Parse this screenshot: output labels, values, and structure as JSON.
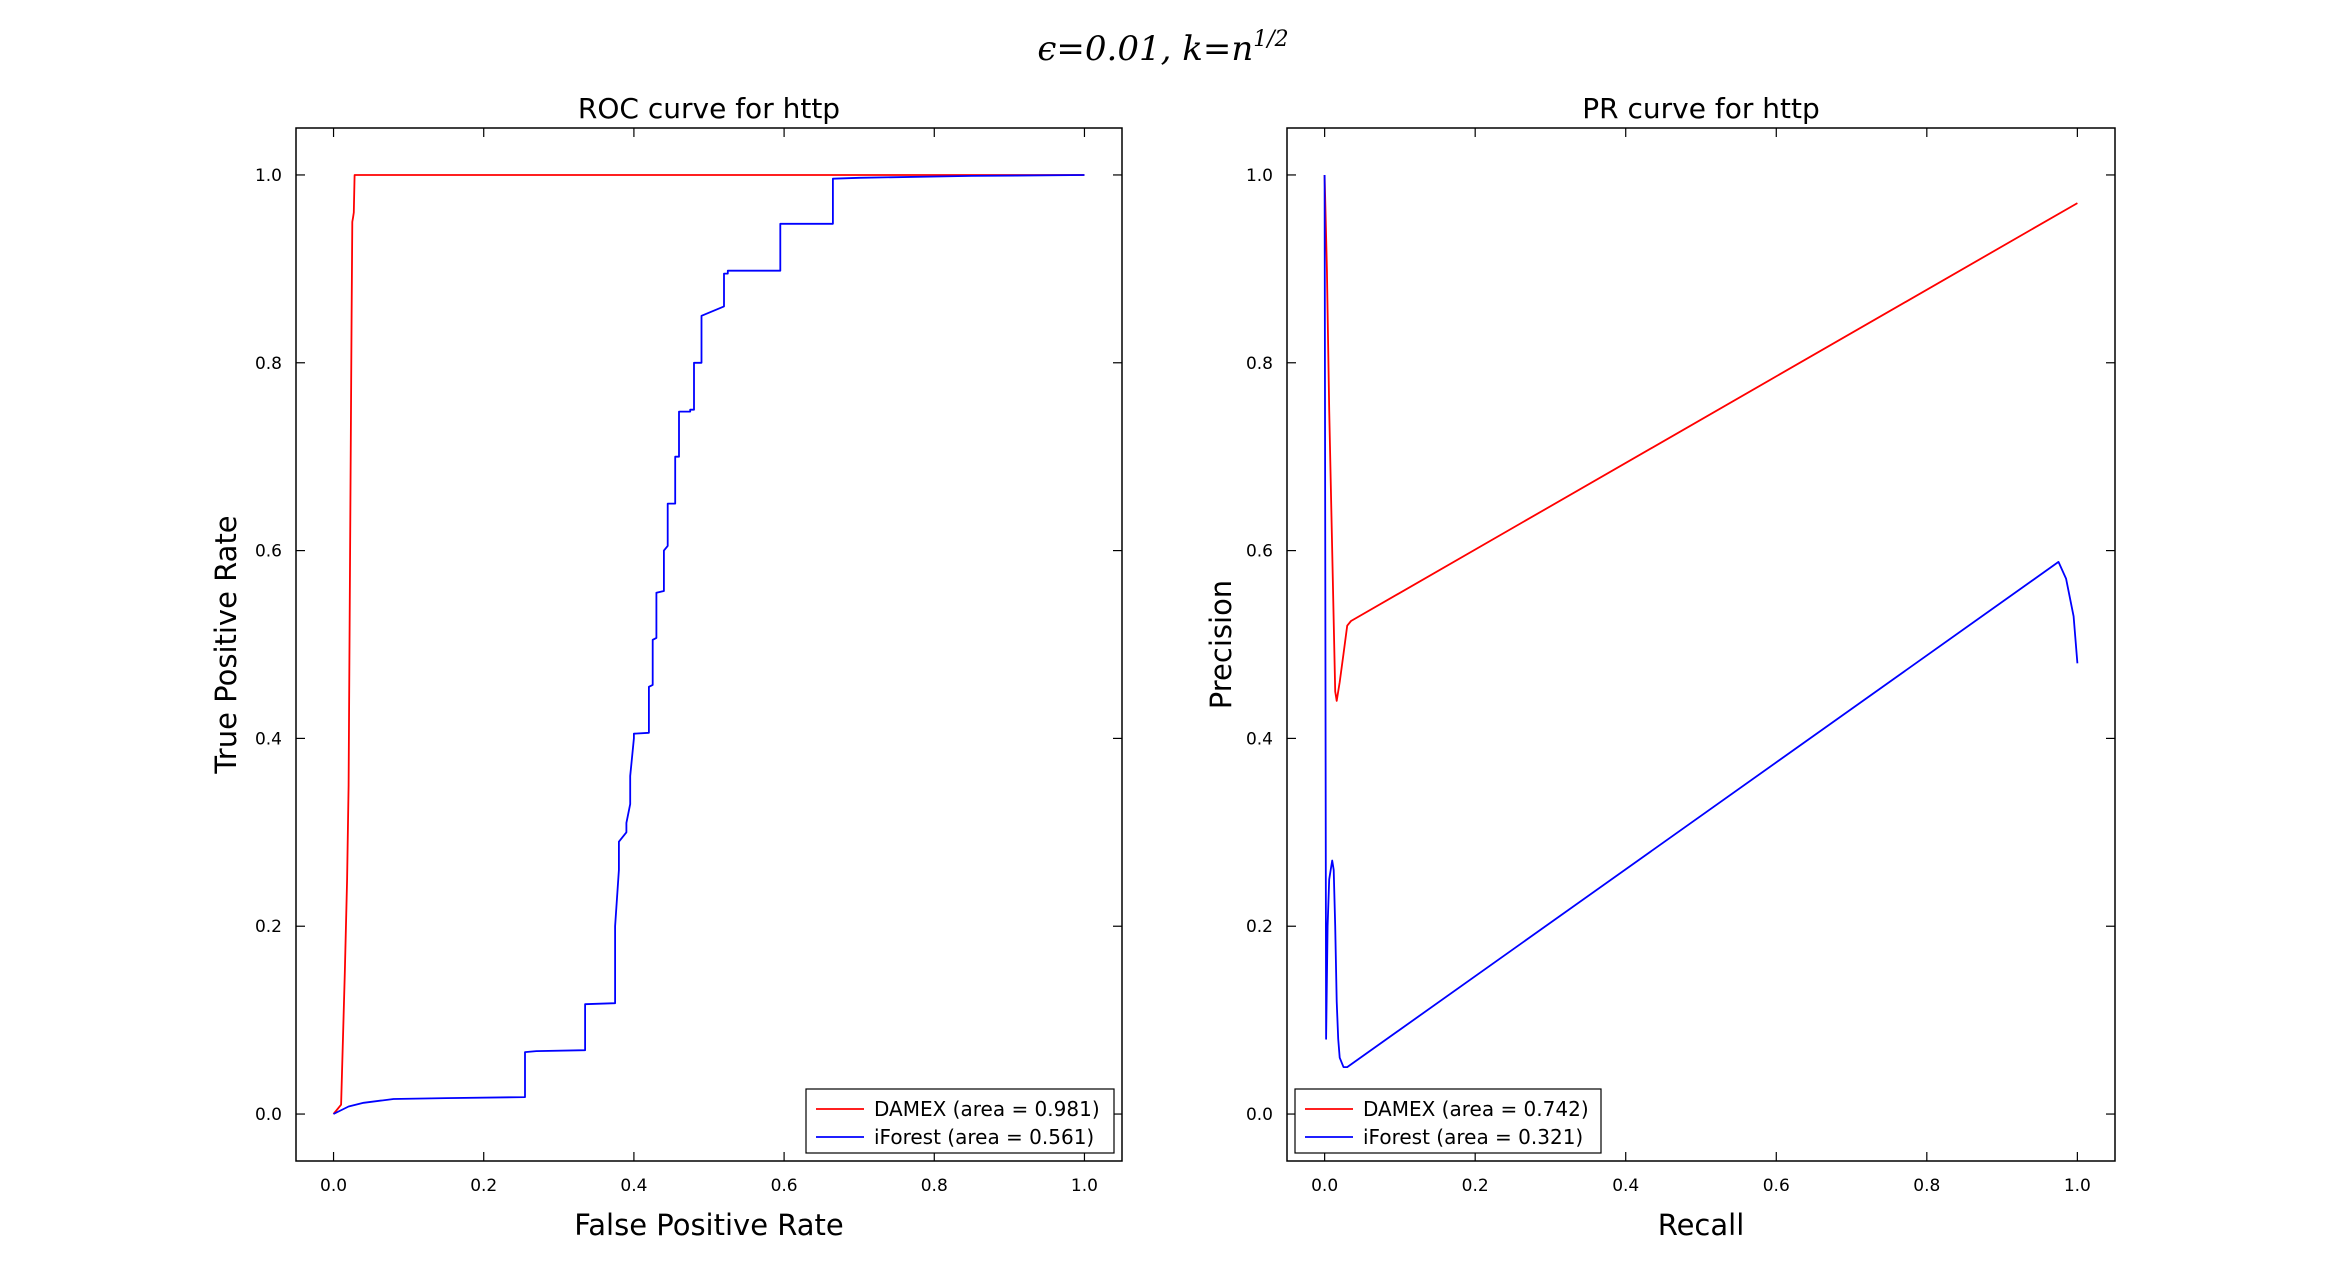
{
  "figure": {
    "suptitle": "ϵ=0.01, k=n^{1/2}"
  },
  "chart_data": [
    {
      "type": "line",
      "title": "ROC curve for http",
      "xlabel": "False Positive Rate",
      "ylabel": "True Positive Rate",
      "xlim": [
        -0.05,
        1.05
      ],
      "ylim": [
        -0.05,
        1.05
      ],
      "xticks": [
        "0.0",
        "0.2",
        "0.4",
        "0.6",
        "0.8",
        "1.0"
      ],
      "yticks": [
        "0.0",
        "0.2",
        "0.4",
        "0.6",
        "0.8",
        "1.0"
      ],
      "grid": false,
      "legend_position": "lower-right",
      "series": [
        {
          "name": "DAMEX (area = 0.981)",
          "color": "#ff0000",
          "x": [
            0.0,
            0.01,
            0.015,
            0.018,
            0.02,
            0.022,
            0.024,
            0.025,
            0.026,
            0.027,
            0.028,
            0.03,
            0.05,
            0.2,
            1.0
          ],
          "y": [
            0.0,
            0.01,
            0.15,
            0.25,
            0.35,
            0.6,
            0.85,
            0.95,
            0.955,
            0.96,
            1.0,
            1.0,
            1.0,
            1.0,
            1.0
          ]
        },
        {
          "name": "iForest (area = 0.561)",
          "color": "#0000ff",
          "x": [
            0.0,
            0.02,
            0.04,
            0.08,
            0.15,
            0.255,
            0.255,
            0.27,
            0.335,
            0.335,
            0.375,
            0.375,
            0.38,
            0.38,
            0.39,
            0.39,
            0.395,
            0.395,
            0.4,
            0.4,
            0.42,
            0.42,
            0.425,
            0.425,
            0.43,
            0.43,
            0.44,
            0.44,
            0.445,
            0.445,
            0.455,
            0.455,
            0.46,
            0.46,
            0.475,
            0.475,
            0.48,
            0.48,
            0.49,
            0.49,
            0.52,
            0.52,
            0.525,
            0.525,
            0.57,
            0.57,
            0.595,
            0.595,
            0.665,
            0.665,
            0.7,
            0.85,
            1.0
          ],
          "y": [
            0.0,
            0.008,
            0.012,
            0.016,
            0.017,
            0.018,
            0.066,
            0.067,
            0.068,
            0.117,
            0.118,
            0.2,
            0.26,
            0.29,
            0.3,
            0.31,
            0.33,
            0.36,
            0.4,
            0.405,
            0.406,
            0.455,
            0.457,
            0.505,
            0.507,
            0.555,
            0.557,
            0.6,
            0.605,
            0.65,
            0.65,
            0.7,
            0.7,
            0.748,
            0.748,
            0.75,
            0.75,
            0.8,
            0.8,
            0.85,
            0.86,
            0.895,
            0.895,
            0.898,
            0.898,
            0.898,
            0.898,
            0.948,
            0.948,
            0.996,
            0.997,
            0.999,
            1.0
          ]
        }
      ]
    },
    {
      "type": "line",
      "title": "PR curve for http",
      "xlabel": "Recall",
      "ylabel": "Precision",
      "xlim": [
        -0.05,
        1.05
      ],
      "ylim": [
        -0.05,
        1.05
      ],
      "xticks": [
        "0.0",
        "0.2",
        "0.4",
        "0.6",
        "0.8",
        "1.0"
      ],
      "yticks": [
        "0.0",
        "0.2",
        "0.4",
        "0.6",
        "0.8",
        "1.0"
      ],
      "grid": false,
      "legend_position": "lower-left",
      "series": [
        {
          "name": "DAMEX (area = 0.742)",
          "color": "#ff0000",
          "x": [
            0.0,
            0.003,
            0.006,
            0.01,
            0.014,
            0.016,
            0.018,
            0.02,
            0.025,
            0.03,
            0.035,
            1.0
          ],
          "y": [
            1.0,
            0.9,
            0.75,
            0.6,
            0.45,
            0.44,
            0.45,
            0.46,
            0.49,
            0.52,
            0.525,
            0.97
          ]
        },
        {
          "name": "iForest (area = 0.321)",
          "color": "#0000ff",
          "x": [
            0.0,
            0.002,
            0.004,
            0.006,
            0.008,
            0.01,
            0.012,
            0.014,
            0.016,
            0.018,
            0.02,
            0.025,
            0.03,
            0.975,
            0.985,
            0.995,
            1.0
          ],
          "y": [
            1.0,
            0.08,
            0.2,
            0.25,
            0.26,
            0.27,
            0.26,
            0.2,
            0.12,
            0.08,
            0.06,
            0.05,
            0.05,
            0.588,
            0.57,
            0.53,
            0.48
          ]
        }
      ]
    }
  ]
}
